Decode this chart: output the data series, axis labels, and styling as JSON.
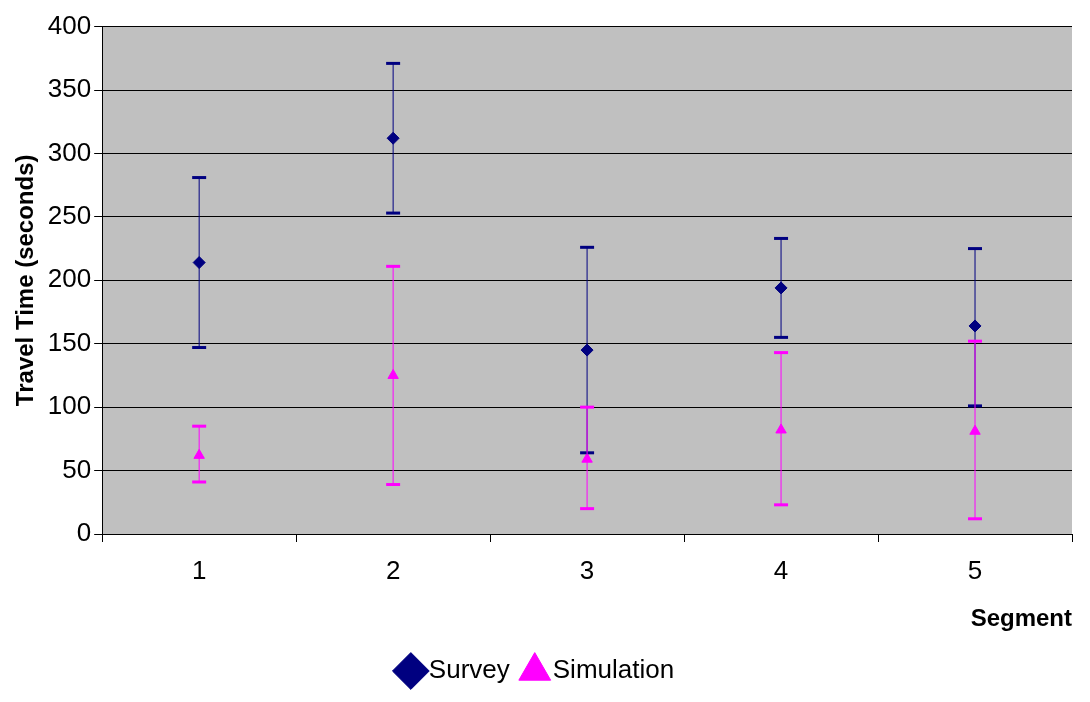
{
  "chart_data": {
    "type": "scatter",
    "xlabel": "Segment",
    "ylabel": "Travel Time (seconds)",
    "categories": [
      "1",
      "2",
      "3",
      "4",
      "5"
    ],
    "ylim": [
      0,
      400
    ],
    "yticks": [
      0,
      50,
      100,
      150,
      200,
      250,
      300,
      350,
      400
    ],
    "grid": "y",
    "legend": "bottom",
    "series": [
      {
        "name": "Survey",
        "color": "#000080",
        "marker": "diamond",
        "values": [
          214,
          312,
          145,
          194,
          164
        ],
        "errors": [
          [
            147,
            281
          ],
          [
            253,
            371
          ],
          [
            64,
            226
          ],
          [
            155,
            233
          ],
          [
            101,
            225
          ]
        ]
      },
      {
        "name": "Simulation",
        "color": "#ff00ff",
        "marker": "triangle",
        "values": [
          62,
          125,
          59,
          82,
          81
        ],
        "errors": [
          [
            41,
            85
          ],
          [
            39,
            211
          ],
          [
            20,
            100
          ],
          [
            23,
            143
          ],
          [
            12,
            152
          ]
        ]
      }
    ]
  }
}
